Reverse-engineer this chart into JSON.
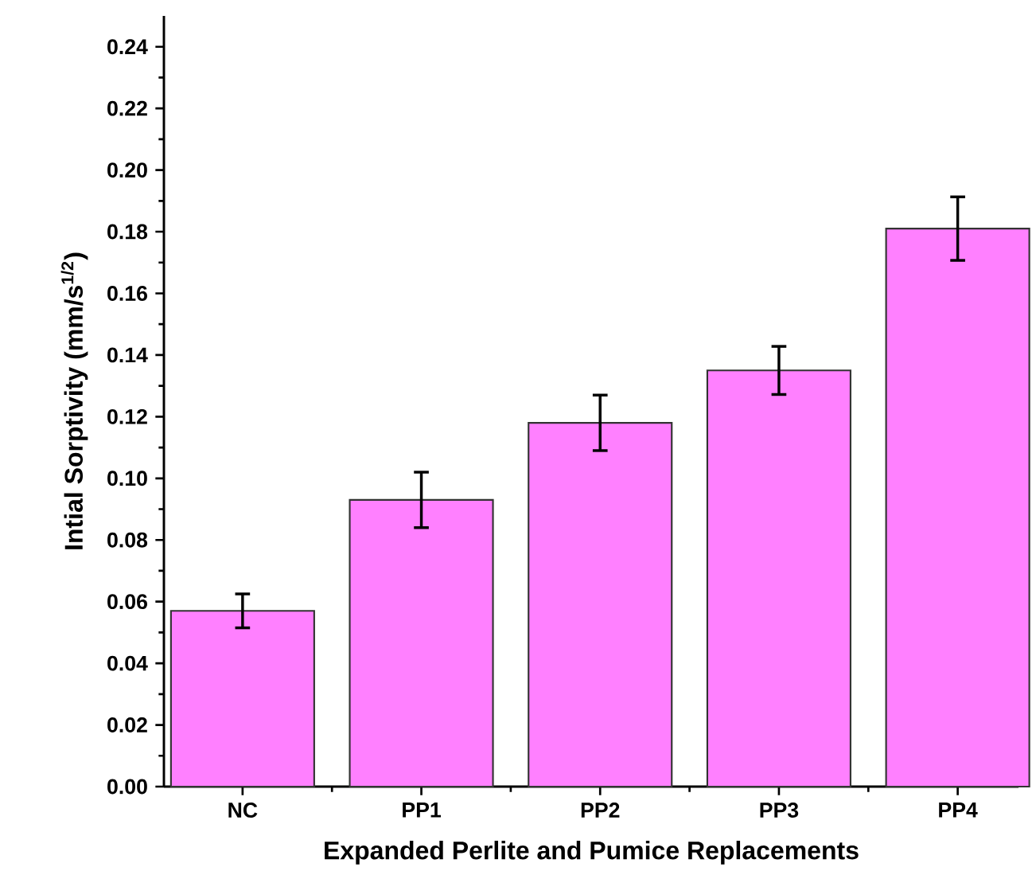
{
  "chart_data": {
    "type": "bar",
    "xlabel": "Expanded Perlite and Pumice Replacements",
    "ylabel": "Intial Sorptivity (mm/s$^{1/2}$)",
    "categories": [
      "NC",
      "PP1",
      "PP2",
      "PP3",
      "PP4"
    ],
    "values": [
      0.057,
      0.093,
      0.118,
      0.135,
      0.181
    ],
    "errors": [
      0.0055,
      0.009,
      0.009,
      0.0078,
      0.0103
    ],
    "color": "#ff80ff",
    "ylim": [
      0,
      0.25
    ],
    "yticks": [
      {
        "value": 0,
        "label": "0.00"
      },
      {
        "value": 0.02,
        "label": "0.02"
      },
      {
        "value": 0.04,
        "label": "0.04"
      },
      {
        "value": 0.06,
        "label": "0.06"
      },
      {
        "value": 0.08,
        "label": "0.08"
      },
      {
        "value": 0.1,
        "label": "0.10"
      },
      {
        "value": 0.12,
        "label": "0.12"
      },
      {
        "value": 0.14,
        "label": "0.14"
      },
      {
        "value": 0.16,
        "label": "0.16"
      },
      {
        "value": 0.18,
        "label": "0.18"
      },
      {
        "value": 0.2,
        "label": "0.20"
      },
      {
        "value": 0.22,
        "label": "0.22"
      },
      {
        "value": 0.24,
        "label": "0.24"
      }
    ]
  }
}
